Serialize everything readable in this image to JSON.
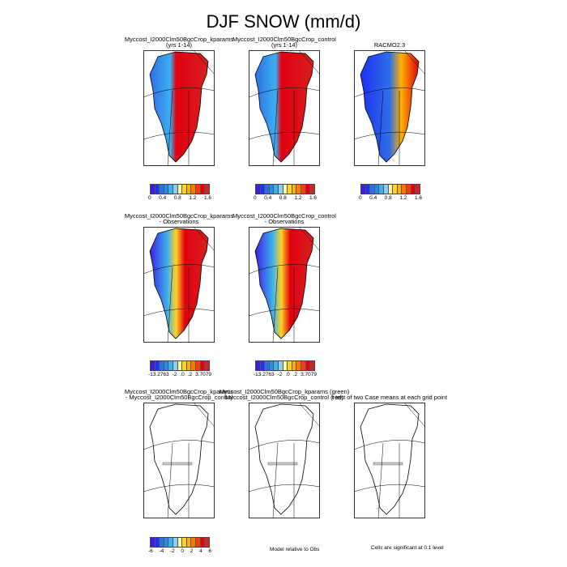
{
  "title": "DJF SNOW (mm/d)",
  "palette": [
    "#3a1fe0",
    "#1e30f0",
    "#2e6ee8",
    "#1e90f0",
    "#3cb0f0",
    "#88d0ee",
    "#fffaa8",
    "#ffd420",
    "#ffb000",
    "#ff7800",
    "#f04010",
    "#e00010",
    "#c82828"
  ],
  "rows": [
    {
      "panels": [
        {
          "title": [
            "Myccost_I2000Clm50BgcCrop_kparams",
            "(yrs 1-14)"
          ],
          "fill": "model"
        },
        {
          "title": [
            "Myccost_I2000Clm50BgcCrop_control",
            "(yrs 1-14)"
          ],
          "fill": "model"
        },
        {
          "title": [
            "RACMO2.3"
          ],
          "fill": "obs"
        }
      ],
      "colorbars": [
        [
          "0",
          "0.4",
          "0.8",
          "1.2",
          "1.6"
        ],
        [
          "0",
          "0.4",
          "0.8",
          "1.2",
          "1.6"
        ],
        [
          "0",
          "0.4",
          "0.8",
          "1.2",
          "1.6"
        ]
      ]
    },
    {
      "panels": [
        {
          "title": [
            "Myccost_I2000Clm50BgcCrop_kparams",
            "- Observations"
          ],
          "fill": "diff"
        },
        {
          "title": [
            "Myccost_I2000Clm50BgcCrop_control",
            "- Observations"
          ],
          "fill": "diff"
        }
      ],
      "colorbars": [
        [
          "-13.2763",
          "-2",
          ".0",
          ".2",
          "3.7079"
        ],
        [
          "-13.2763",
          "-2",
          ".0",
          ".2",
          "3.7079"
        ]
      ]
    },
    {
      "panels": [
        {
          "title": [
            "Myccost_I2000Clm50BgcCrop_kparams",
            "- Myccost_I2000Clm50BgcCrop_control"
          ],
          "fill": "none"
        },
        {
          "title": [
            "Myccost_I2000Clm50BgcCrop_kparams (green)",
            "Myccost_I2000Clm50BgcCrop_control (red)"
          ],
          "fill": "none"
        },
        {
          "title": [
            "t test of two Case means at each grid point"
          ],
          "fill": "none"
        }
      ],
      "colorbars": [
        [
          "-6",
          "-4",
          "-2",
          "0",
          "2",
          "4",
          "6"
        ]
      ]
    }
  ],
  "notes": {
    "model_relative": "Model relative to Obs",
    "significance": "Cells are significant at 0.1 level"
  }
}
